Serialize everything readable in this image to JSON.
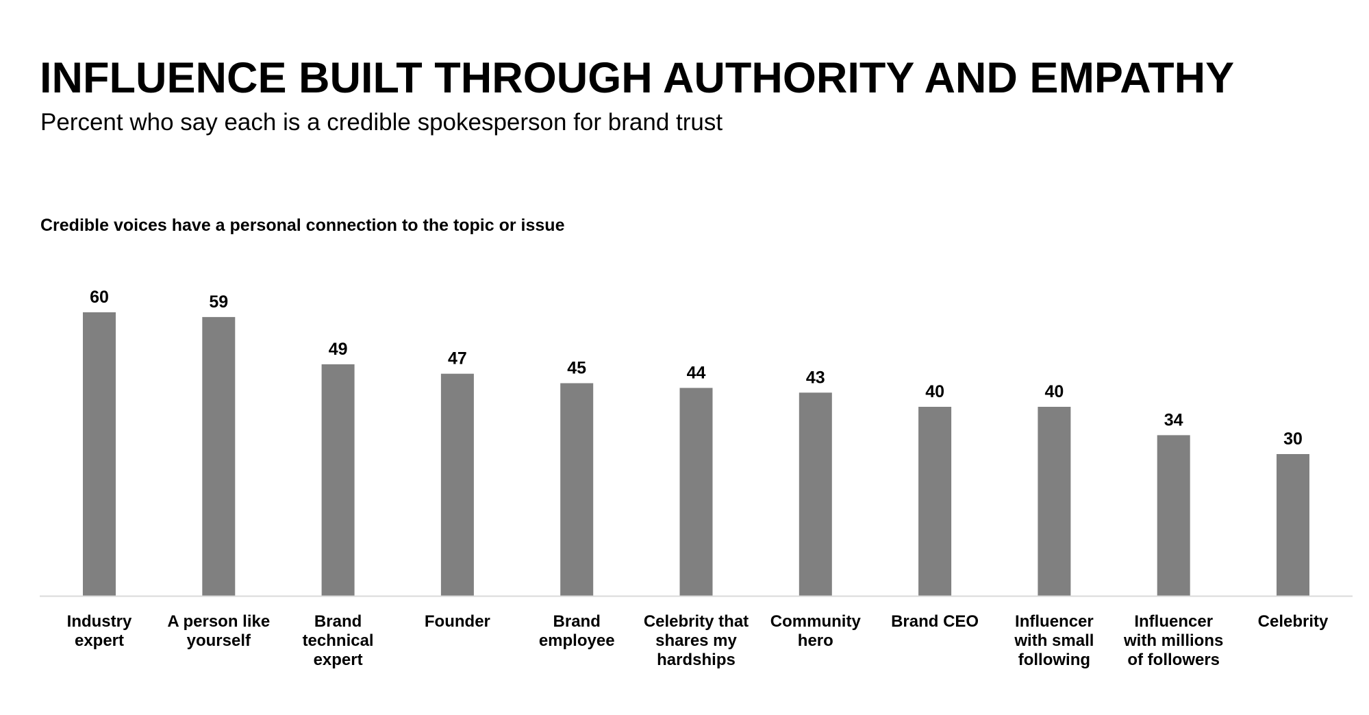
{
  "page": {
    "title": "INFLUENCE BUILT THROUGH AUTHORITY AND EMPATHY",
    "subtitle": "Percent who say each is a credible spokesperson for brand trust"
  },
  "chart_data": {
    "type": "bar",
    "title": "Credible voices have a personal connection to the topic or issue",
    "categories": [
      [
        "Industry",
        "expert"
      ],
      [
        "A person like",
        "yourself"
      ],
      [
        "Brand",
        "technical",
        "expert"
      ],
      [
        "Founder"
      ],
      [
        "Brand",
        "employee"
      ],
      [
        "Celebrity that",
        "shares my",
        "hardships"
      ],
      [
        "Community",
        "hero"
      ],
      [
        "Brand CEO"
      ],
      [
        "Influencer",
        "with small",
        "following"
      ],
      [
        "Influencer",
        "with millions",
        "of followers"
      ],
      [
        "Celebrity"
      ]
    ],
    "values": [
      60,
      59,
      49,
      47,
      45,
      44,
      43,
      40,
      40,
      34,
      30
    ],
    "ylim": [
      0,
      60
    ],
    "grid": false,
    "legend": "none",
    "bar_color": "#808080",
    "axis_color": "#d9d9d9"
  }
}
